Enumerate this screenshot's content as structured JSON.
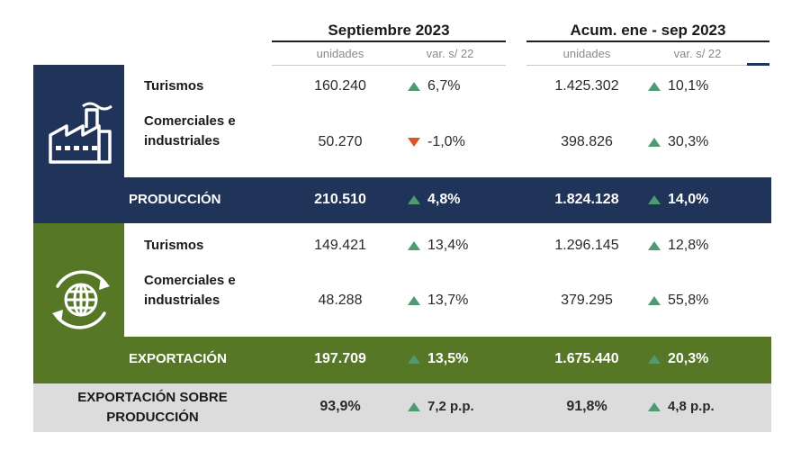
{
  "header": {
    "period1_title": "Septiembre 2023",
    "period2_title": "Acum. ene - sep 2023",
    "col_units": "unidades",
    "col_var": "var. s/ 22"
  },
  "produccion": {
    "icon": "factory-icon",
    "rows": [
      {
        "label": "Turismos",
        "sep_units": "160.240",
        "sep_var": "6,7%",
        "sep_dir": "up",
        "acc_units": "1.425.302",
        "acc_var": "10,1%",
        "acc_dir": "up"
      },
      {
        "label": "Comerciales e industriales",
        "sep_units": "50.270",
        "sep_var": "-1,0%",
        "sep_dir": "down",
        "acc_units": "398.826",
        "acc_var": "30,3%",
        "acc_dir": "up"
      }
    ],
    "total": {
      "label": "PRODUCCIÓN",
      "sep_units": "210.510",
      "sep_var": "4,8%",
      "acc_units": "1.824.128",
      "acc_var": "14,0%"
    }
  },
  "exportacion": {
    "icon": "globe-cycle-icon",
    "rows": [
      {
        "label": "Turismos",
        "sep_units": "149.421",
        "sep_var": "13,4%",
        "sep_dir": "up",
        "acc_units": "1.296.145",
        "acc_var": "12,8%",
        "acc_dir": "up"
      },
      {
        "label": "Comerciales e industriales",
        "sep_units": "48.288",
        "sep_var": "13,7%",
        "sep_dir": "up",
        "acc_units": "379.295",
        "acc_var": "55,8%",
        "acc_dir": "up"
      }
    ],
    "total": {
      "label": "EXPORTACIÓN",
      "sep_units": "197.709",
      "sep_var": "13,5%",
      "acc_units": "1.675.440",
      "acc_var": "20,3%"
    }
  },
  "ratio": {
    "label_line1": "EXPORTACIÓN SOBRE",
    "label_line2": "PRODUCCIÓN",
    "sep_value": "93,9%",
    "sep_var": "7,2 p.p.",
    "acc_value": "91,8%",
    "acc_var": "4,8 p.p."
  },
  "colors": {
    "blue": "#1f3458",
    "green": "#567726",
    "gray": "#dcdcdc",
    "up_arrow": "#4e9a72",
    "down_arrow": "#d9532b"
  }
}
